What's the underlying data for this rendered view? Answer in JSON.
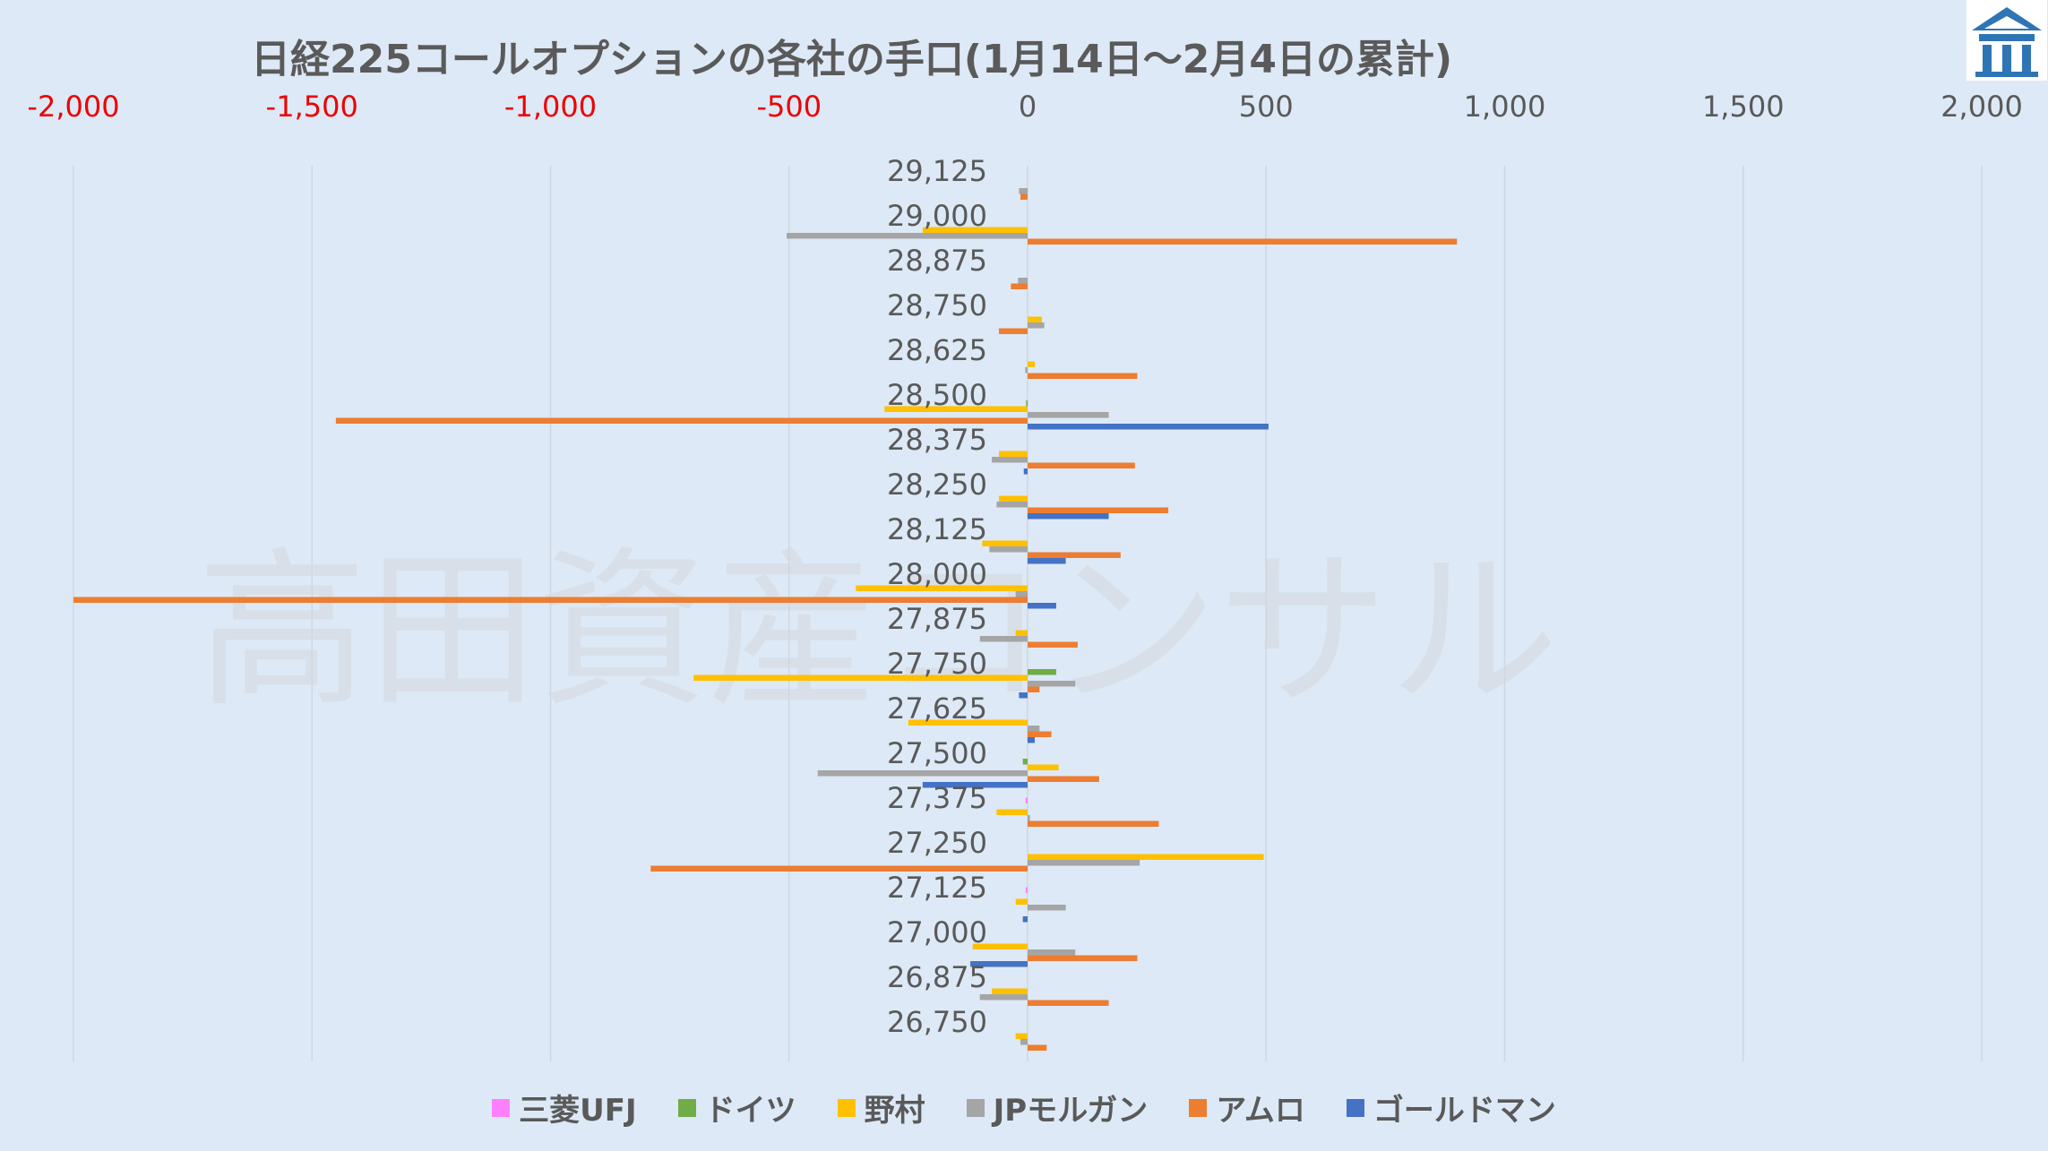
{
  "title": "日経225コールオプションの各社の手口(1月14日～2月4日の累計)",
  "watermark": "高田資産コンサル",
  "logo_icon": "building-logo-icon",
  "chart_data": {
    "type": "bar",
    "orientation": "horizontal",
    "title": "日経225コールオプションの各社の手口(1月14日～2月4日の累計)",
    "xlim": [
      -2000,
      2000
    ],
    "x_ticks": [
      "-2,000",
      "-1,500",
      "-1,000",
      "-500",
      "0",
      "500",
      "1,000",
      "1,500",
      "2,000"
    ],
    "x_tick_values": [
      -2000,
      -1500,
      -1000,
      -500,
      0,
      500,
      1000,
      1500,
      2000
    ],
    "negative_tick_color": "#ee0000",
    "grid": "vertical",
    "legend_position": "bottom",
    "categories": [
      "29,125",
      "29,000",
      "28,875",
      "28,750",
      "28,625",
      "28,500",
      "28,375",
      "28,250",
      "28,125",
      "28,000",
      "27,875",
      "27,750",
      "27,625",
      "27,500",
      "27,375",
      "27,250",
      "27,125",
      "27,000",
      "26,875",
      "26,750"
    ],
    "series": [
      {
        "name": "三菱UFJ",
        "color": "#ff80ff",
        "values": [
          0,
          0,
          0,
          0,
          0,
          0,
          0,
          0,
          0,
          0,
          0,
          0,
          0,
          0,
          -4,
          0,
          -4,
          0,
          0,
          0
        ]
      },
      {
        "name": "ドイツ",
        "color": "#70ad47",
        "values": [
          0,
          0,
          0,
          0,
          0,
          -3,
          0,
          0,
          0,
          0,
          0,
          60,
          0,
          -10,
          0,
          0,
          0,
          0,
          0,
          0
        ]
      },
      {
        "name": "野村",
        "color": "#ffc000",
        "values": [
          0,
          -220,
          0,
          30,
          15,
          -300,
          -60,
          -60,
          -95,
          -360,
          -25,
          -700,
          -250,
          65,
          -65,
          495,
          -25,
          -115,
          -75,
          -25
        ]
      },
      {
        "name": "JPモルガン",
        "color": "#a5a5a5",
        "values": [
          -18,
          -505,
          -20,
          35,
          -5,
          170,
          -75,
          -65,
          -80,
          -25,
          -100,
          100,
          25,
          -440,
          5,
          235,
          80,
          100,
          -100,
          -15
        ]
      },
      {
        "name": "アムロ",
        "color": "#ed7d31",
        "values": [
          -15,
          900,
          -35,
          -60,
          230,
          -1450,
          225,
          295,
          195,
          -2000,
          105,
          25,
          50,
          150,
          275,
          -790,
          0,
          230,
          170,
          40
        ]
      },
      {
        "name": "ゴールドマン",
        "color": "#4472c4",
        "values": [
          0,
          0,
          0,
          0,
          0,
          505,
          -8,
          170,
          80,
          60,
          0,
          -18,
          15,
          -220,
          0,
          0,
          -10,
          -120,
          0,
          0
        ]
      }
    ]
  }
}
